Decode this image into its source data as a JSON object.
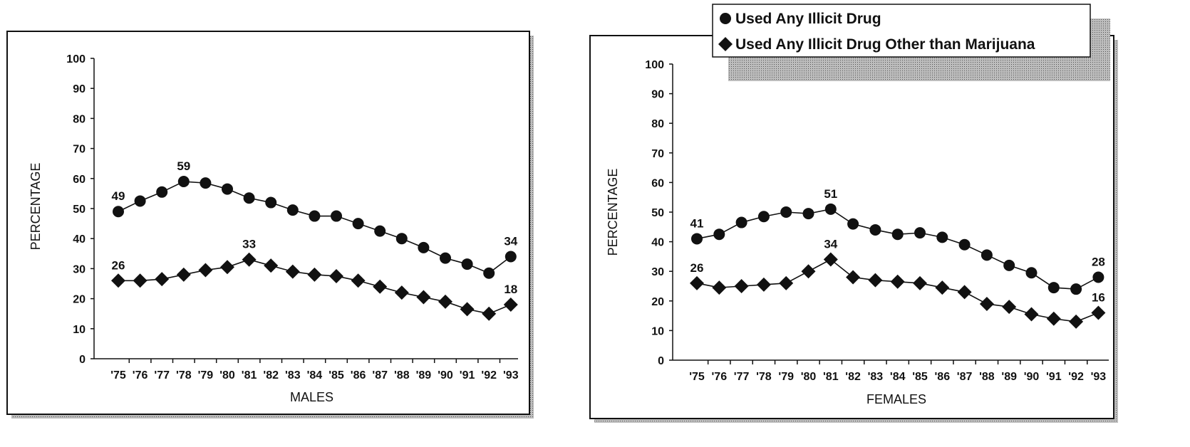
{
  "chart_data": [
    {
      "type": "line",
      "xlabel": "MALES",
      "ylabel": "PERCENTAGE",
      "ylim": [
        0,
        100
      ],
      "yticks": [
        "0",
        "10",
        "20",
        "30",
        "40",
        "50",
        "60",
        "70",
        "80",
        "90",
        "100"
      ],
      "categories": [
        "'75",
        "'76",
        "'77",
        "'78",
        "'79",
        "'80",
        "'81",
        "'82",
        "'83",
        "'84",
        "'85",
        "'86",
        "'87",
        "'88",
        "'89",
        "'90",
        "'91",
        "'92",
        "'93"
      ],
      "series": [
        {
          "name": "Used Any Illicit Drug",
          "marker": "circle",
          "values": [
            49,
            52.5,
            55.5,
            59,
            58.5,
            56.5,
            53.5,
            52,
            49.5,
            47.5,
            47.5,
            45,
            42.5,
            40,
            37,
            33.5,
            31.5,
            28.5,
            34
          ]
        },
        {
          "name": "Used Any Illicit Drug Other than Marijuana",
          "marker": "diamond",
          "values": [
            26,
            26,
            26.5,
            28,
            29.5,
            30.5,
            33,
            31,
            29,
            28,
            27.5,
            26,
            24,
            22,
            20.5,
            19,
            16.5,
            15,
            18
          ]
        }
      ],
      "data_labels": [
        {
          "series": 0,
          "index": 0,
          "text": "49"
        },
        {
          "series": 0,
          "index": 3,
          "text": "59"
        },
        {
          "series": 0,
          "index": 18,
          "text": "34"
        },
        {
          "series": 1,
          "index": 0,
          "text": "26"
        },
        {
          "series": 1,
          "index": 6,
          "text": "33"
        },
        {
          "series": 1,
          "index": 18,
          "text": "18"
        }
      ]
    },
    {
      "type": "line",
      "xlabel": "FEMALES",
      "ylabel": "PERCENTAGE",
      "ylim": [
        0,
        100
      ],
      "yticks": [
        "0",
        "10",
        "20",
        "30",
        "40",
        "50",
        "60",
        "70",
        "80",
        "90",
        "100"
      ],
      "categories": [
        "'75",
        "'76",
        "'77",
        "'78",
        "'79",
        "'80",
        "'81",
        "'82",
        "'83",
        "'84",
        "'85",
        "'86",
        "'87",
        "'88",
        "'89",
        "'90",
        "'91",
        "'92",
        "'93"
      ],
      "series": [
        {
          "name": "Used Any Illicit Drug",
          "marker": "circle",
          "values": [
            41,
            42.5,
            46.5,
            48.5,
            50,
            49.5,
            51,
            46,
            44,
            42.5,
            43,
            41.5,
            39,
            35.5,
            32,
            29.5,
            24.5,
            24,
            28
          ]
        },
        {
          "name": "Used Any Illicit Drug Other than Marijuana",
          "marker": "diamond",
          "values": [
            26,
            24.5,
            25,
            25.5,
            26,
            30,
            34,
            28,
            27,
            26.5,
            26,
            24.5,
            23,
            19,
            18,
            15.5,
            14,
            13,
            16
          ]
        }
      ],
      "data_labels": [
        {
          "series": 0,
          "index": 0,
          "text": "41"
        },
        {
          "series": 0,
          "index": 6,
          "text": "51"
        },
        {
          "series": 0,
          "index": 18,
          "text": "28"
        },
        {
          "series": 1,
          "index": 0,
          "text": "26"
        },
        {
          "series": 1,
          "index": 6,
          "text": "34"
        },
        {
          "series": 1,
          "index": 18,
          "text": "16"
        }
      ]
    }
  ],
  "legend": {
    "placement": "top-right",
    "items": [
      {
        "label": "Used Any Illicit Drug",
        "marker": "circle"
      },
      {
        "label": "Used Any Illicit Drug Other than Marijuana",
        "marker": "diamond"
      }
    ]
  },
  "colors": {
    "line": "#111111",
    "marker": "#111111",
    "shadow": "#9a9a9a",
    "background": "#ffffff"
  }
}
